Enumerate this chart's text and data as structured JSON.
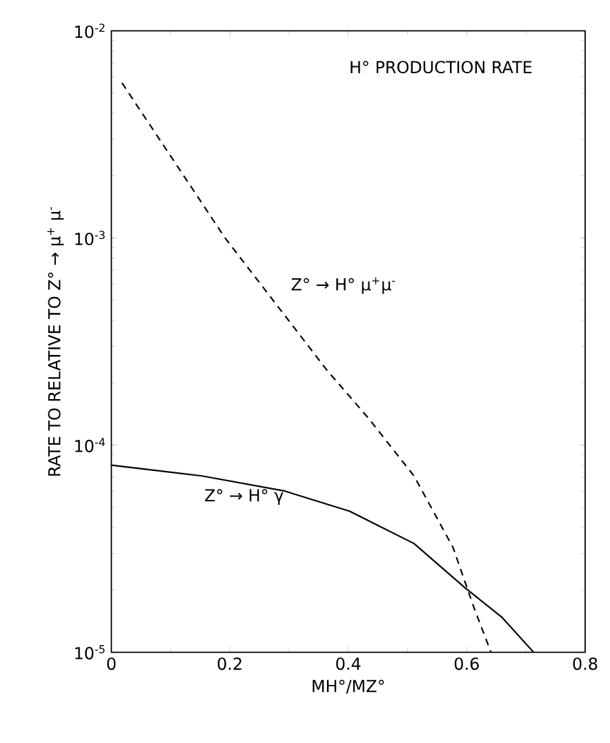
{
  "chart_data": {
    "type": "line",
    "title": "H° PRODUCTION RATE",
    "xlabel": "MH°/MZ°",
    "ylabel": "RATE TO RELATIVE TO Z° → μ$^{+}$ μ$^{-}$",
    "log": "y",
    "xlim": [
      0,
      0.8
    ],
    "ylim": [
      1e-05,
      0.01
    ],
    "xticks": [
      0,
      0.2,
      0.4,
      0.6,
      0.8
    ],
    "yticks": [
      {
        "value": 1e-05,
        "label": "10$^{-5}$"
      },
      {
        "value": 0.0001,
        "label": "10$^{-4}$"
      },
      {
        "value": 0.001,
        "label": "10$^{-3}$"
      },
      {
        "value": 0.01,
        "label": "10$^{-2}$"
      }
    ],
    "series": [
      {
        "name": "Z° → H° μ$^{+}$μ$^{-}$",
        "color": "#000000",
        "line_style": "dashed",
        "x": [
          0.018,
          0.192,
          0.364,
          0.434,
          0.511,
          0.577,
          0.612,
          0.641
        ],
        "values": [
          0.0056,
          0.001,
          0.00023,
          0.000135,
          7.1e-05,
          3.2e-05,
          1.65e-05,
          1e-05
        ]
      },
      {
        "name": "Z° → H° γ",
        "color": "#000000",
        "line_style": "solid",
        "x": [
          0,
          0.153,
          0.293,
          0.402,
          0.511,
          0.597,
          0.659,
          0.713
        ],
        "values": [
          8e-05,
          7.1e-05,
          6e-05,
          4.8e-05,
          3.35e-05,
          2.05e-05,
          1.48e-05,
          1e-05
        ]
      }
    ]
  }
}
